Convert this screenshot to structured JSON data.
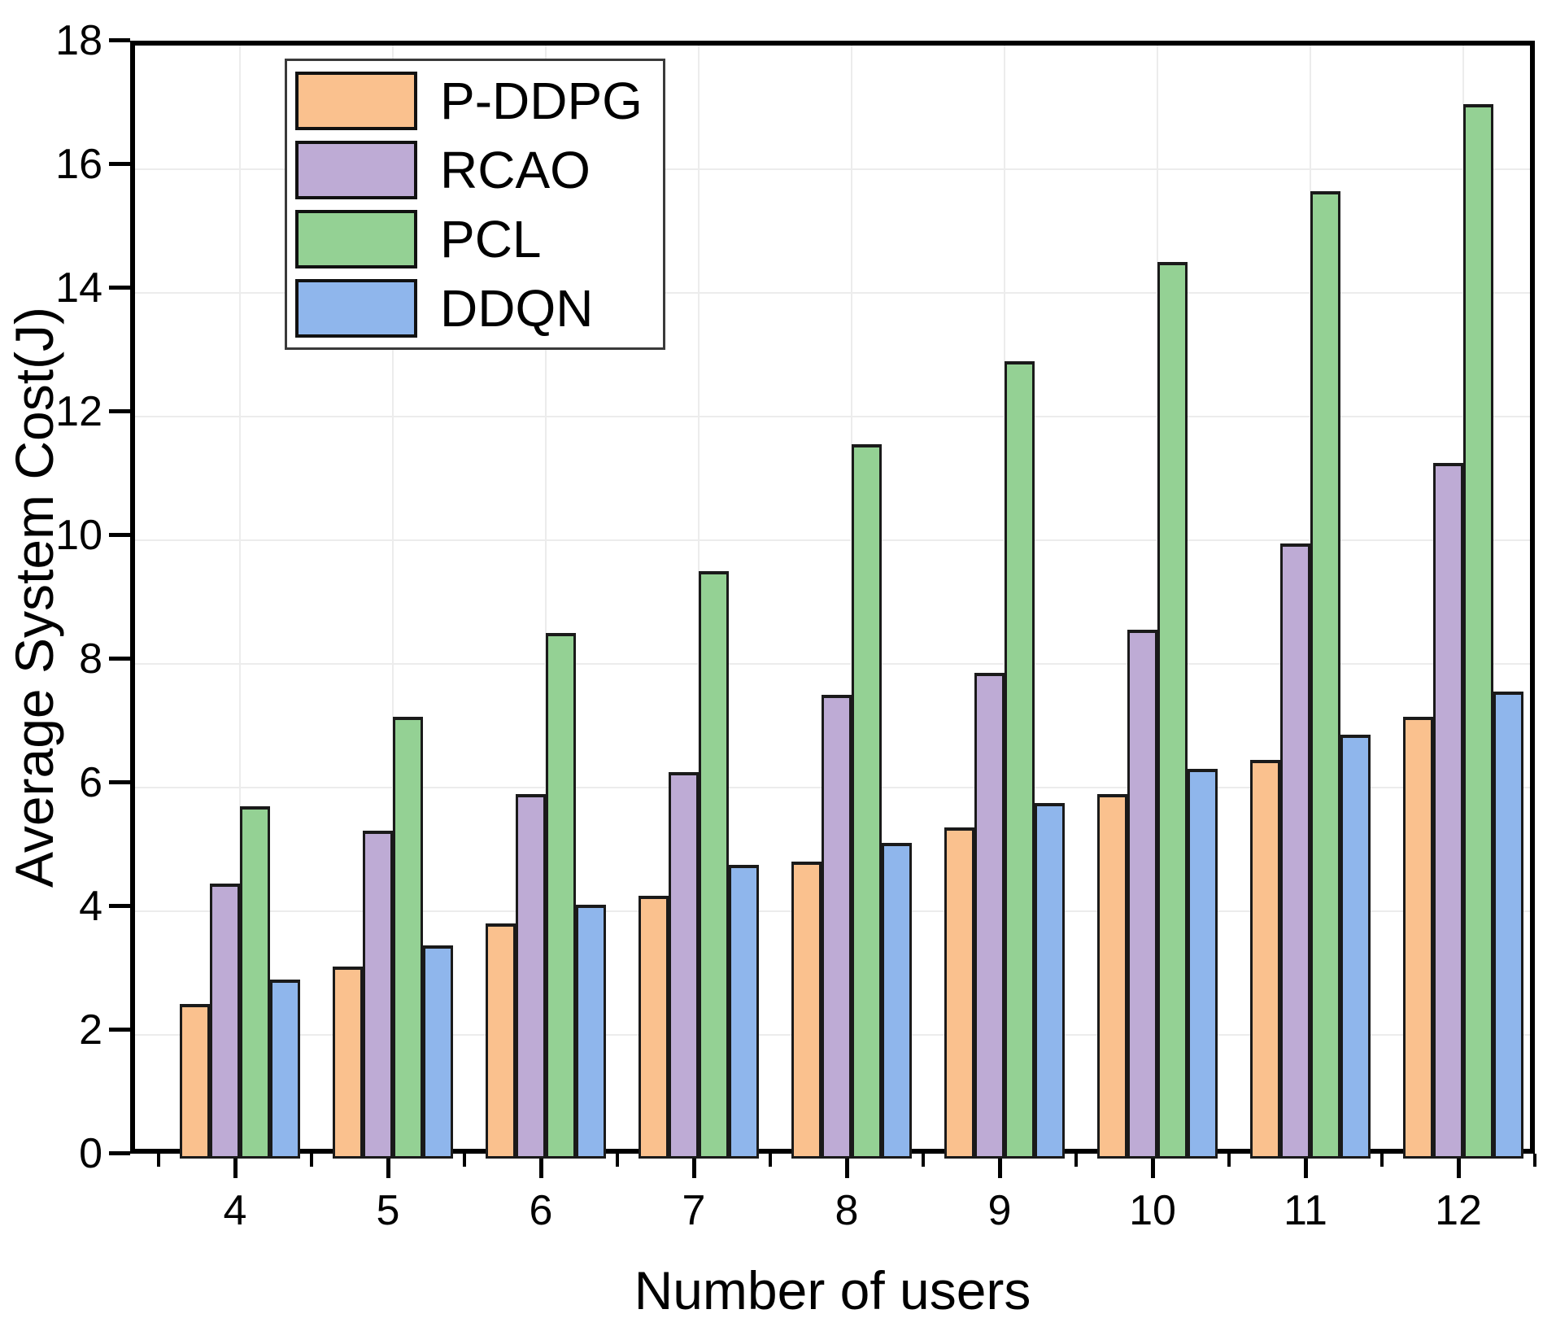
{
  "figure": {
    "x_axis_title": "Number of users",
    "y_axis_title": "Average System Cost(J)"
  },
  "chart_data": {
    "type": "bar",
    "title": "",
    "xlabel": "Number of users",
    "ylabel": "Average System Cost(J)",
    "categories": [
      "4",
      "5",
      "6",
      "7",
      "8",
      "9",
      "10",
      "11",
      "12"
    ],
    "series": [
      {
        "name": "P-DDPG",
        "color": "#FAC18E",
        "values": [
          2.5,
          3.1,
          3.8,
          4.25,
          4.8,
          5.35,
          5.9,
          6.45,
          7.15
        ]
      },
      {
        "name": "RCAO",
        "color": "#BEABD5",
        "values": [
          4.45,
          5.3,
          5.9,
          6.25,
          7.5,
          7.85,
          8.55,
          9.95,
          11.25
        ]
      },
      {
        "name": "PCL",
        "color": "#94D194",
        "values": [
          5.7,
          7.15,
          8.5,
          9.5,
          11.55,
          12.9,
          14.5,
          15.65,
          17.05
        ]
      },
      {
        "name": "DDQN",
        "color": "#8FB6EC",
        "values": [
          2.9,
          3.45,
          4.1,
          4.75,
          5.1,
          5.75,
          6.3,
          6.85,
          7.55
        ]
      }
    ],
    "ylim": [
      0,
      18
    ],
    "ytick_step": 2,
    "yticks": [
      0,
      2,
      4,
      6,
      8,
      10,
      12,
      14,
      16,
      18
    ],
    "grid": true,
    "grid_color": "#ECECEC",
    "legend_position": "top-left",
    "bar_edge_color": "#1A1A1A",
    "frame_color": "#000000"
  }
}
